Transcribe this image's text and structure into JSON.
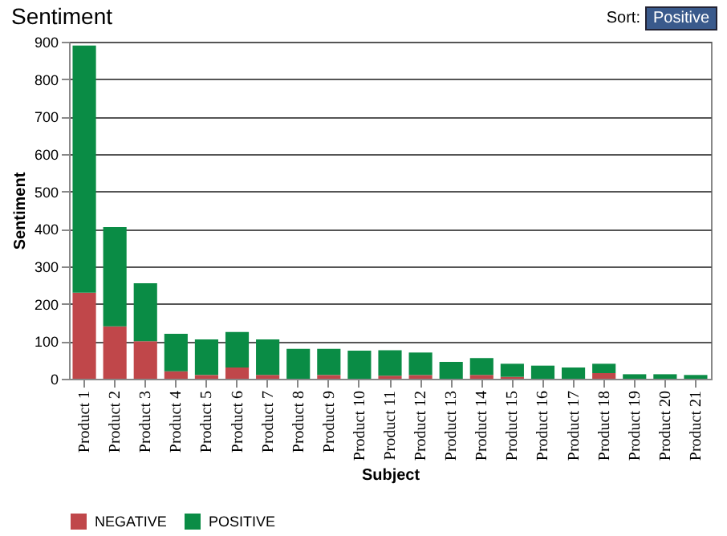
{
  "chart_data": {
    "type": "bar",
    "title": "Sentiment",
    "xlabel": "Subject",
    "ylabel": "Sentiment",
    "categories": [
      "Product 1",
      "Product 2",
      "Product 3",
      "Product 4",
      "Product 5",
      "Product 6",
      "Product 7",
      "Product 8",
      "Product 9",
      "Product 10",
      "Product 11",
      "Product 12",
      "Product 13",
      "Product 14",
      "Product 15",
      "Product 16",
      "Product 17",
      "Product 18",
      "Product 19",
      "Product 20",
      "Product 21"
    ],
    "series": [
      {
        "name": "NEGATIVE",
        "color": "#c0474a",
        "values": [
          230,
          140,
          100,
          20,
          10,
          30,
          10,
          0,
          10,
          0,
          8,
          10,
          0,
          10,
          5,
          0,
          0,
          15,
          0,
          0,
          0
        ]
      },
      {
        "name": "POSITIVE",
        "color": "#0a8c45",
        "values": [
          660,
          265,
          155,
          100,
          95,
          95,
          95,
          80,
          70,
          75,
          68,
          60,
          45,
          45,
          35,
          35,
          30,
          25,
          12,
          12,
          10
        ]
      }
    ],
    "stacked": true,
    "ylim": [
      0,
      900
    ],
    "yticks": [
      0,
      100,
      200,
      300,
      400,
      500,
      600,
      700,
      800,
      900
    ],
    "grid": "y",
    "legend": "bottom",
    "annotations": [
      "Sort:",
      "Positive"
    ]
  }
}
